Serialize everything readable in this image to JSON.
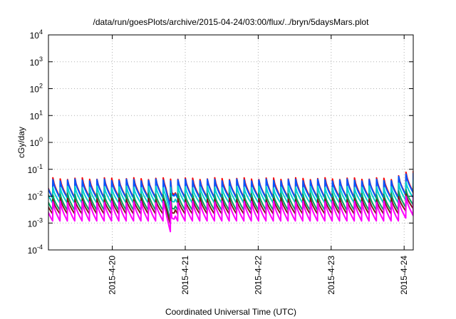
{
  "chart_data": {
    "type": "line",
    "title": "/data/run/goesPlots/archive/2015-04-24/03:00/flux/../bryn/5daysMars.plot",
    "xlabel": "Coordinated Universal Time (UTC)",
    "ylabel": "cGy/day",
    "yscale": "log",
    "ylim": [
      0.0001,
      10000
    ],
    "xlim": [
      "2015-04-19 03:00",
      "2015-04-24 03:00"
    ],
    "grid": true,
    "ytick_values": [
      0.0001,
      0.001,
      0.01,
      0.1,
      1,
      10,
      100,
      1000,
      10000
    ],
    "ytick_labels": [
      {
        "base": "10",
        "exp": "-4"
      },
      {
        "base": "10",
        "exp": "-3"
      },
      {
        "base": "10",
        "exp": "-2"
      },
      {
        "base": "10",
        "exp": "-1"
      },
      {
        "base": "10",
        "exp": "0"
      },
      {
        "base": "10",
        "exp": "1"
      },
      {
        "base": "10",
        "exp": "2"
      },
      {
        "base": "10",
        "exp": "3"
      },
      {
        "base": "10",
        "exp": "4"
      }
    ],
    "xticks": [
      {
        "label": "2015-4-20",
        "x": "2015-04-20 00:00"
      },
      {
        "label": "2015-4-21",
        "x": "2015-04-21 00:00"
      },
      {
        "label": "2015-4-22",
        "x": "2015-04-22 00:00"
      },
      {
        "label": "2015-4-23",
        "x": "2015-04-23 00:00"
      },
      {
        "label": "2015-4-24",
        "x": "2015-04-24 00:00"
      }
    ],
    "pattern": "sawtooth spikes roughly every 2.4 hours; drop near 2015-04-20 19:00",
    "series": [
      {
        "color": "#ff0000",
        "peak": 0.045,
        "base": 0.009
      },
      {
        "color": "#0055ff",
        "peak": 0.04,
        "base": 0.0085
      },
      {
        "color": "#00cfcf",
        "peak": 0.022,
        "base": 0.0055
      },
      {
        "color": "#00a060",
        "peak": 0.012,
        "base": 0.003
      },
      {
        "color": "#7a1a1a",
        "peak": 0.008,
        "base": 0.0022
      },
      {
        "color": "#ff00ff",
        "peak": 0.006,
        "base": 0.0012
      }
    ]
  }
}
